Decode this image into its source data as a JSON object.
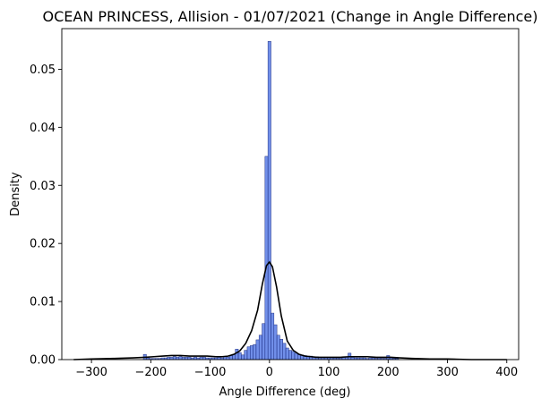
{
  "chart_data": {
    "type": "bar",
    "title": "OCEAN PRINCESS, Allision - 01/07/2021 (Change in Angle Difference)",
    "xlabel": "Angle Difference (deg)",
    "ylabel": "Density",
    "xlim": [
      -350,
      420
    ],
    "ylim": [
      0,
      0.057
    ],
    "xticks": [
      -300,
      -200,
      -100,
      0,
      100,
      200,
      300,
      400
    ],
    "yticks": [
      0.0,
      0.01,
      0.02,
      0.03,
      0.04,
      0.05
    ],
    "ytick_labels": [
      "0.00",
      "0.01",
      "0.02",
      "0.03",
      "0.04",
      "0.05"
    ],
    "grid": false,
    "histogram": {
      "bin_width": 5.1,
      "bar_color": "#4169e1",
      "edge_color": "#1f2f80",
      "bins": [
        [
          -210,
          0.0009
        ],
        [
          -205,
          0.0003
        ],
        [
          -200,
          0.0002
        ],
        [
          -195,
          0.0002
        ],
        [
          -190,
          0.0002
        ],
        [
          -185,
          0.0002
        ],
        [
          -180,
          0.0003
        ],
        [
          -175,
          0.0003
        ],
        [
          -170,
          0.0004
        ],
        [
          -165,
          0.0004
        ],
        [
          -160,
          0.0005
        ],
        [
          -155,
          0.0004
        ],
        [
          -150,
          0.0005
        ],
        [
          -145,
          0.0004
        ],
        [
          -140,
          0.0004
        ],
        [
          -135,
          0.0004
        ],
        [
          -130,
          0.0003
        ],
        [
          -125,
          0.0004
        ],
        [
          -120,
          0.0003
        ],
        [
          -115,
          0.0004
        ],
        [
          -110,
          0.0004
        ],
        [
          -105,
          0.0003
        ],
        [
          -100,
          0.0003
        ],
        [
          -95,
          0.0003
        ],
        [
          -90,
          0.0003
        ],
        [
          -85,
          0.0004
        ],
        [
          -80,
          0.0003
        ],
        [
          -75,
          0.0005
        ],
        [
          -70,
          0.0004
        ],
        [
          -65,
          0.0007
        ],
        [
          -60,
          0.0009
        ],
        [
          -55,
          0.0018
        ],
        [
          -50,
          0.0012
        ],
        [
          -45,
          0.0008
        ],
        [
          -40,
          0.0016
        ],
        [
          -35,
          0.0022
        ],
        [
          -30,
          0.0024
        ],
        [
          -25,
          0.0026
        ],
        [
          -20,
          0.0034
        ],
        [
          -15,
          0.0042
        ],
        [
          -10,
          0.0062
        ],
        [
          -5,
          0.035
        ],
        [
          0,
          0.0548
        ],
        [
          5,
          0.008
        ],
        [
          10,
          0.006
        ],
        [
          15,
          0.0042
        ],
        [
          20,
          0.0035
        ],
        [
          25,
          0.0028
        ],
        [
          30,
          0.002
        ],
        [
          35,
          0.0016
        ],
        [
          40,
          0.0014
        ],
        [
          45,
          0.0011
        ],
        [
          50,
          0.0009
        ],
        [
          55,
          0.0008
        ],
        [
          60,
          0.0007
        ],
        [
          65,
          0.0006
        ],
        [
          70,
          0.0006
        ],
        [
          75,
          0.0005
        ],
        [
          80,
          0.0005
        ],
        [
          85,
          0.0004
        ],
        [
          90,
          0.0004
        ],
        [
          95,
          0.0004
        ],
        [
          100,
          0.0004
        ],
        [
          105,
          0.0004
        ],
        [
          110,
          0.0003
        ],
        [
          115,
          0.0003
        ],
        [
          120,
          0.0003
        ],
        [
          125,
          0.0004
        ],
        [
          130,
          0.0005
        ],
        [
          135,
          0.0011
        ],
        [
          140,
          0.0004
        ],
        [
          145,
          0.0003
        ],
        [
          150,
          0.0003
        ],
        [
          155,
          0.0003
        ],
        [
          160,
          0.0003
        ],
        [
          165,
          0.0002
        ],
        [
          170,
          0.0003
        ],
        [
          175,
          0.0003
        ],
        [
          180,
          0.0002
        ],
        [
          185,
          0.0003
        ],
        [
          190,
          0.0002
        ],
        [
          195,
          0.0002
        ],
        [
          200,
          0.0007
        ],
        [
          205,
          0.0003
        ],
        [
          210,
          0.0002
        ],
        [
          215,
          0.0002
        ]
      ]
    },
    "kde": {
      "color": "#000000",
      "x": [
        -330,
        -300,
        -260,
        -230,
        -210,
        -195,
        -180,
        -165,
        -150,
        -135,
        -120,
        -105,
        -90,
        -80,
        -70,
        -60,
        -50,
        -40,
        -30,
        -20,
        -12,
        -5,
        0,
        5,
        12,
        20,
        30,
        40,
        50,
        60,
        70,
        80,
        90,
        105,
        120,
        135,
        150,
        165,
        180,
        195,
        205,
        220,
        240,
        270,
        300,
        340,
        370,
        400
      ],
      "y": [
        0.0,
        0.0001,
        0.0002,
        0.0003,
        0.0004,
        0.0005,
        0.0006,
        0.0007,
        0.0007,
        0.0006,
        0.0006,
        0.0006,
        0.0005,
        0.0005,
        0.0006,
        0.0009,
        0.0015,
        0.0028,
        0.005,
        0.0085,
        0.013,
        0.0162,
        0.0168,
        0.016,
        0.0125,
        0.0075,
        0.0032,
        0.0016,
        0.0009,
        0.0006,
        0.0005,
        0.0004,
        0.0004,
        0.0004,
        0.0004,
        0.0005,
        0.0005,
        0.0005,
        0.0004,
        0.0004,
        0.0004,
        0.0003,
        0.0002,
        0.0001,
        0.0001,
        0.0,
        0.0,
        0.0
      ]
    }
  }
}
